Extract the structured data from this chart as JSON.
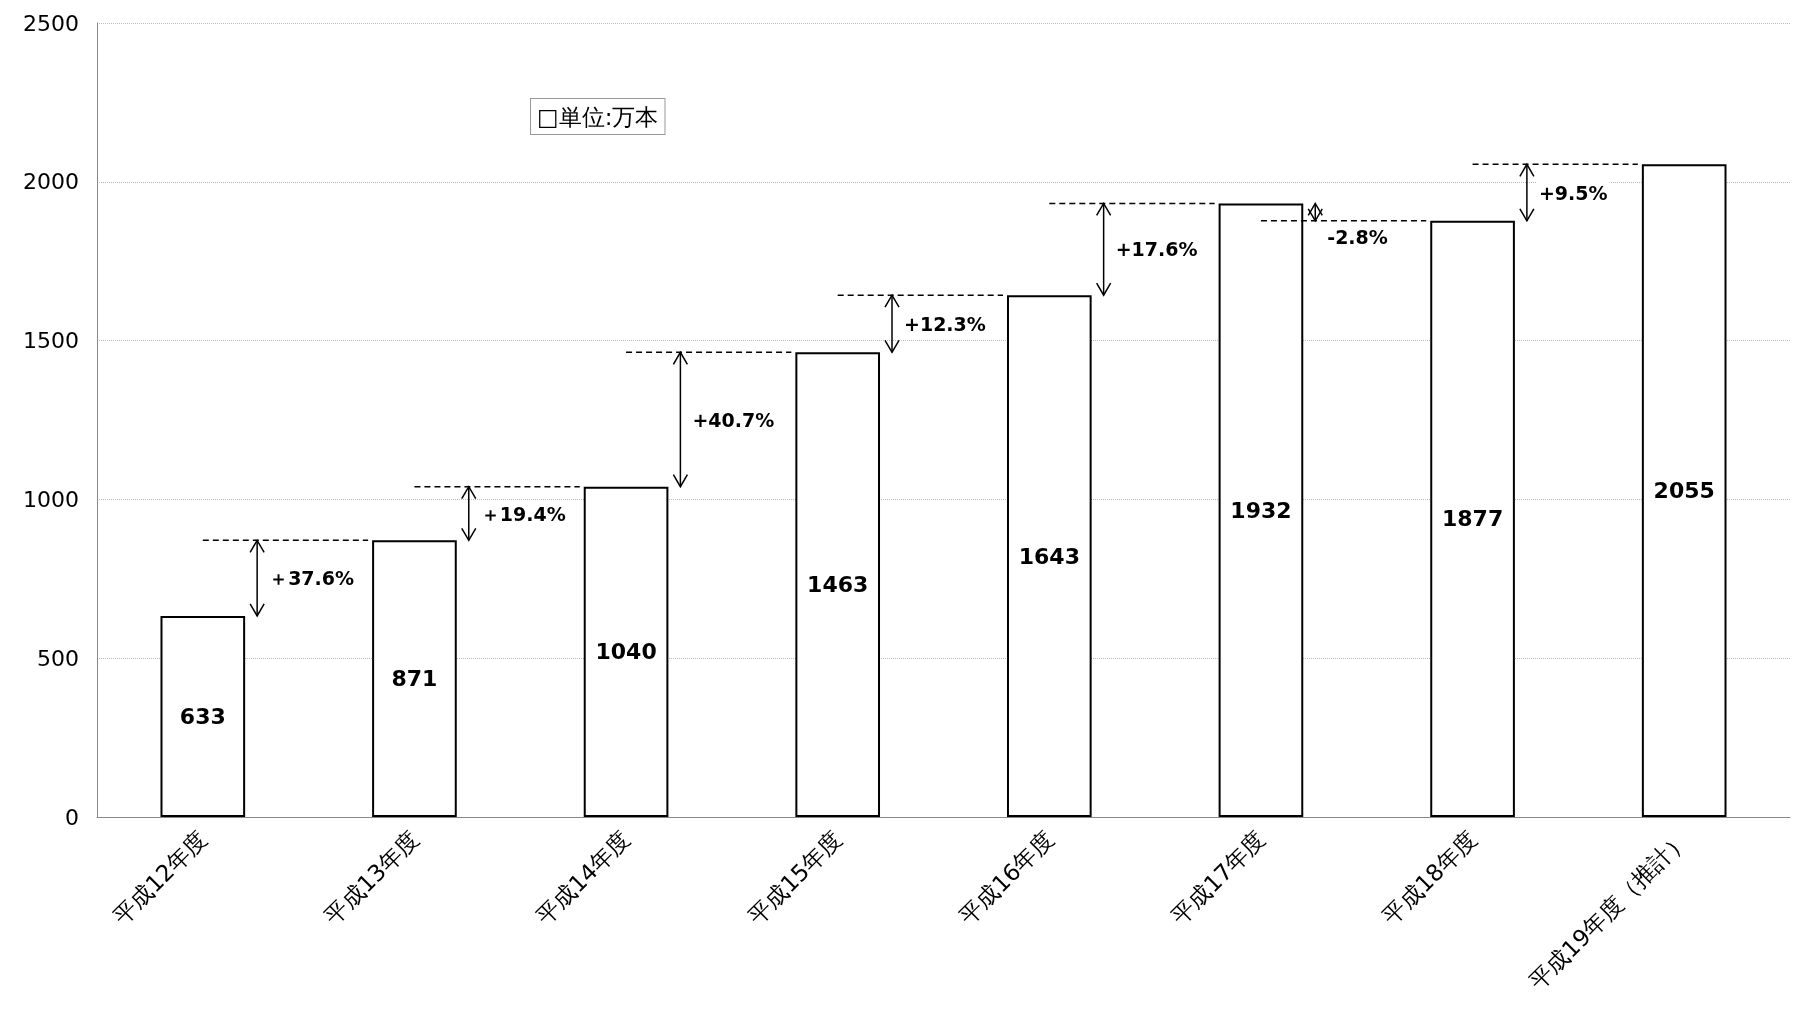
{
  "chart_data": {
    "type": "bar",
    "categories": [
      "平成12年度",
      "平成13年度",
      "平成14年度",
      "平成15年度",
      "平成16年度",
      "平成17年度",
      "平成18年度",
      "平成19年度（推計）"
    ],
    "values": [
      633,
      871,
      1040,
      1463,
      1643,
      1932,
      1877,
      2055
    ],
    "color": "#ffffff",
    "ylim": [
      0,
      2500
    ],
    "yticks": [
      0,
      500,
      1000,
      1500,
      2000,
      2500
    ],
    "grid": "y",
    "data_labels": true,
    "annotations": [
      "□単位:万本",
      "＋37.6%",
      "＋19.4%",
      "+40.7%",
      "+12.3%",
      "+17.6%",
      "-2.8%",
      "+9.5%"
    ]
  }
}
